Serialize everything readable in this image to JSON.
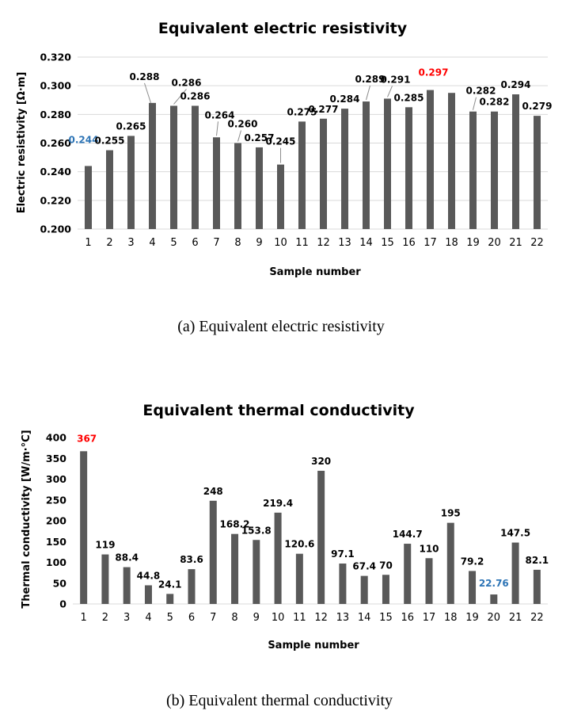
{
  "charts": [
    {
      "id": "a",
      "caption": "(a)  Equivalent  electric  resistivity",
      "chart_data": {
        "type": "bar",
        "title": "Equivalent electric resistivity",
        "xlabel": "Sample number",
        "ylabel": "Electric resistivity [Ω·m]",
        "ylim": [
          0.2,
          0.32
        ],
        "yticks": [
          "0.200",
          "0.220",
          "0.240",
          "0.260",
          "0.280",
          "0.300",
          "0.320"
        ],
        "categories": [
          "1",
          "2",
          "3",
          "4",
          "5",
          "6",
          "7",
          "8",
          "9",
          "10",
          "11",
          "12",
          "13",
          "14",
          "15",
          "16",
          "17",
          "18",
          "19",
          "20",
          "21",
          "22"
        ],
        "values": [
          0.244,
          0.255,
          0.265,
          0.288,
          0.286,
          0.286,
          0.264,
          0.26,
          0.257,
          0.245,
          0.275,
          0.277,
          0.284,
          0.289,
          0.291,
          0.285,
          0.297,
          0.295,
          0.282,
          0.282,
          0.294,
          0.279
        ],
        "labels": [
          "0.244",
          "0.255",
          "0.265",
          "0.288",
          "0.286",
          "0.286",
          "0.264",
          "0.260",
          "0.257",
          "0.245",
          "0.275",
          "0.277",
          "0.284",
          "0.289",
          "0.291",
          "0.285",
          "0.297",
          "",
          "0.282",
          "0.282",
          "0.294",
          "0.279"
        ],
        "highlight_min_index": 0,
        "highlight_max_index": 16,
        "grid": true,
        "colors": {
          "bar": "#595959",
          "min": "#2e75b6",
          "max": "#ff0000"
        }
      }
    },
    {
      "id": "b",
      "caption": "(b)  Equivalent  thermal  conductivity",
      "chart_data": {
        "type": "bar",
        "title": "Equivalent thermal conductivity",
        "xlabel": "Sample number",
        "ylabel": "Thermal conductivity [W/m·°C]",
        "ylim": [
          0,
          400
        ],
        "yticks": [
          "0",
          "50",
          "100",
          "150",
          "200",
          "250",
          "300",
          "350",
          "400"
        ],
        "categories": [
          "1",
          "2",
          "3",
          "4",
          "5",
          "6",
          "7",
          "8",
          "9",
          "10",
          "11",
          "12",
          "13",
          "14",
          "15",
          "16",
          "17",
          "18",
          "19",
          "20",
          "21",
          "22"
        ],
        "values": [
          367,
          119,
          88.4,
          44.8,
          24.1,
          83.6,
          248,
          168.2,
          153.8,
          219.4,
          120.6,
          320,
          97.1,
          67.4,
          70,
          144.7,
          110,
          195,
          79.2,
          22.76,
          147.5,
          82.1
        ],
        "labels": [
          "367",
          "119",
          "88.4",
          "44.8",
          "24.1",
          "83.6",
          "248",
          "168.2",
          "153.8",
          "219.4",
          "120.6",
          "320",
          "97.1",
          "67.4",
          "70",
          "144.7",
          "110",
          "195",
          "79.2",
          "22.76",
          "147.5",
          "82.1"
        ],
        "highlight_min_index": 19,
        "highlight_max_index": 0,
        "grid": false,
        "colors": {
          "bar": "#595959",
          "min": "#2e75b6",
          "max": "#ff0000"
        }
      }
    }
  ]
}
